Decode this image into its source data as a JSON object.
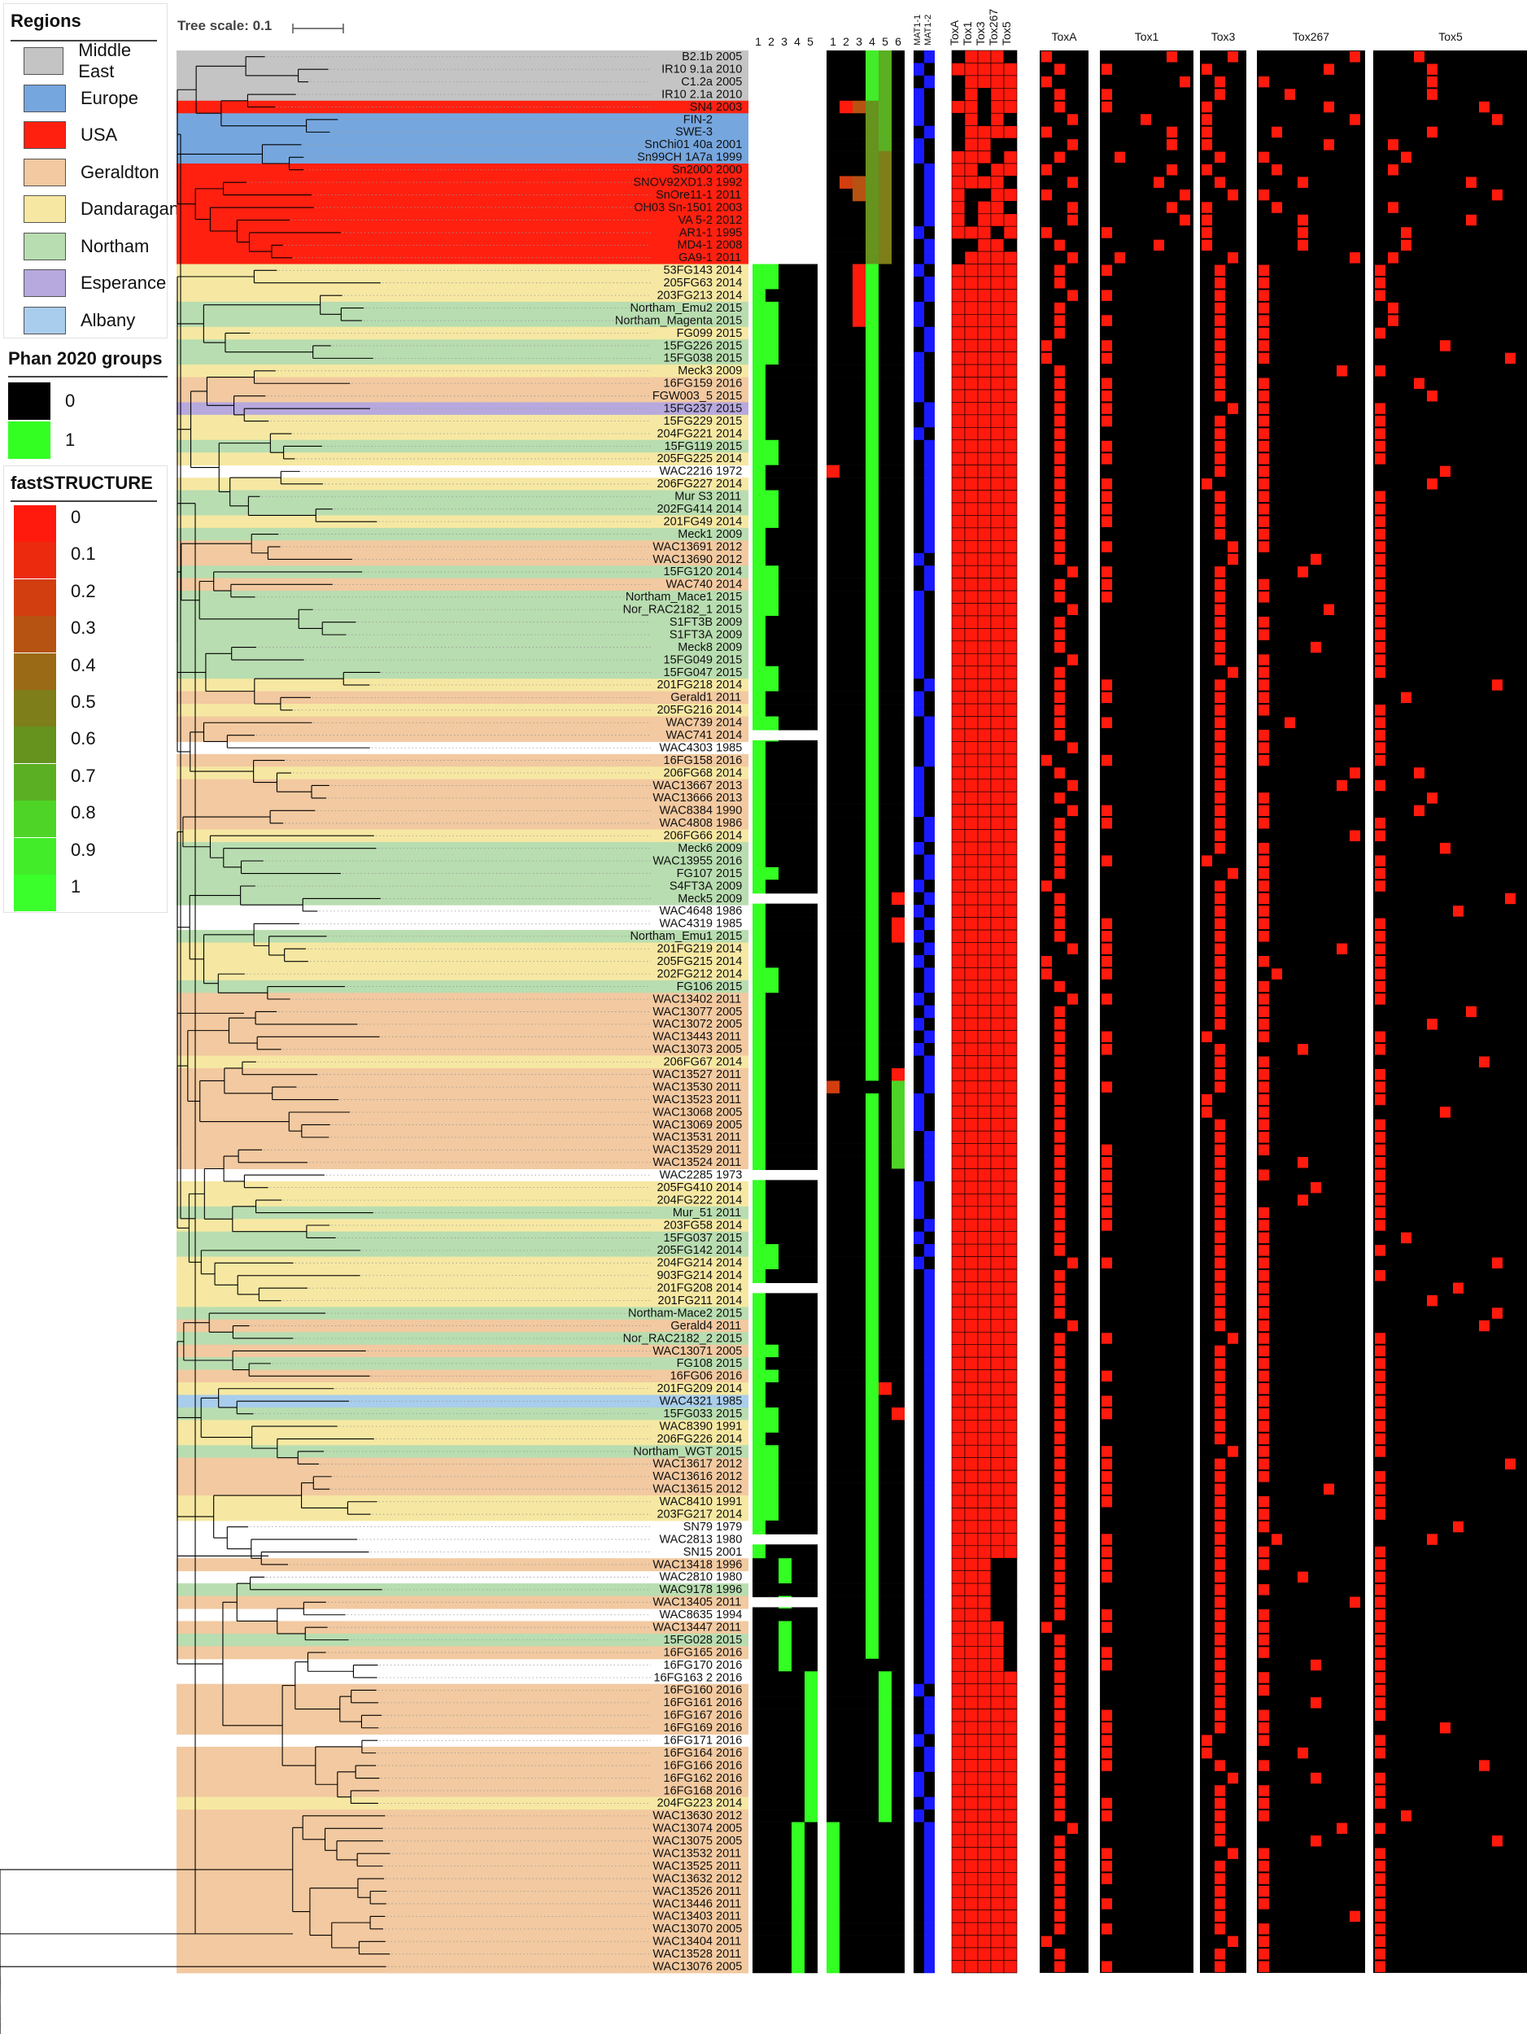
{
  "tree_scale": {
    "label": "Tree scale: 0.1"
  },
  "legends": {
    "regions": {
      "title": "Regions",
      "items": [
        {
          "label": "Middle East",
          "color": "#c4c4c4"
        },
        {
          "label": "Europe",
          "color": "#76a6de"
        },
        {
          "label": "USA",
          "color": "#ff2010"
        },
        {
          "label": "Geraldton",
          "color": "#f2c9a0"
        },
        {
          "label": "Dandaragan",
          "color": "#f6e8a2"
        },
        {
          "label": "Northam",
          "color": "#b8ddb0"
        },
        {
          "label": "Esperance",
          "color": "#b7a9de"
        },
        {
          "label": "Albany",
          "color": "#a9cdec"
        }
      ]
    },
    "phan": {
      "title": "Phan 2020 groups",
      "items": [
        {
          "label": "0",
          "color": "#000000"
        },
        {
          "label": "1",
          "color": "#33ff22"
        }
      ]
    },
    "faststructure": {
      "title": "fastSTRUCTURE",
      "items": [
        {
          "label": "0",
          "color": "#ff1a0d"
        },
        {
          "label": "0.1",
          "color": "#ec2a0e"
        },
        {
          "label": "0.2",
          "color": "#d23e10"
        },
        {
          "label": "0.3",
          "color": "#b65212"
        },
        {
          "label": "0.4",
          "color": "#9a6a16"
        },
        {
          "label": "0.5",
          "color": "#7e7e1a"
        },
        {
          "label": "0.6",
          "color": "#66921e"
        },
        {
          "label": "0.7",
          "color": "#5aaf22"
        },
        {
          "label": "0.8",
          "color": "#4ed426"
        },
        {
          "label": "0.9",
          "color": "#42ec29"
        },
        {
          "label": "1",
          "color": "#3bff2b"
        }
      ]
    }
  },
  "column_headers": {
    "phan_groups": [
      "1",
      "2",
      "3",
      "4",
      "5"
    ],
    "faststructure_k": [
      "1",
      "2",
      "3",
      "4",
      "5",
      "6"
    ],
    "mat": [
      "MAT1-1",
      "MAT1-2"
    ],
    "tox_presence": [
      "ToxA",
      "Tox1",
      "Tox3",
      "Tox267",
      "Tox5"
    ],
    "tox_variants": [
      "ToxA",
      "Tox1",
      "Tox3",
      "Tox267",
      "Tox5"
    ]
  },
  "colors": {
    "present": "#ff1a0d",
    "absent": "#000000",
    "phan_member": "#33ff22",
    "mat1_2": "#1a1aff",
    "branch": "#000000"
  },
  "isolates": [
    {
      "name": "B2.1b",
      "year": "2005",
      "region": "Middle East"
    },
    {
      "name": "IR10 9.1a",
      "year": "2010",
      "region": "Middle East"
    },
    {
      "name": "C1.2a",
      "year": "2005",
      "region": "Middle East"
    },
    {
      "name": "IR10 2.1a",
      "year": "2010",
      "region": "Middle East"
    },
    {
      "name": "SN4",
      "year": "2003",
      "region": "USA"
    },
    {
      "name": "FIN-2",
      "year": "",
      "region": "Europe"
    },
    {
      "name": "SWE-3",
      "year": "",
      "region": "Europe"
    },
    {
      "name": "SnChi01 40a",
      "year": "2001",
      "region": "Europe"
    },
    {
      "name": "Sn99CH 1A7a",
      "year": "1999",
      "region": "Europe"
    },
    {
      "name": "Sn2000",
      "year": "2000",
      "region": "USA"
    },
    {
      "name": "SNOV92XD1.3",
      "year": "1992",
      "region": "USA"
    },
    {
      "name": "SnOre11-1",
      "year": "2011",
      "region": "USA"
    },
    {
      "name": "OH03 Sn-1501",
      "year": "2003",
      "region": "USA"
    },
    {
      "name": "VA 5-2",
      "year": "2012",
      "region": "USA"
    },
    {
      "name": "AR1-1",
      "year": "1995",
      "region": "USA"
    },
    {
      "name": "MD4-1",
      "year": "2008",
      "region": "USA"
    },
    {
      "name": "GA9-1",
      "year": "2011",
      "region": "USA"
    },
    {
      "name": "53FG143",
      "year": "2014",
      "region": "Dandaragan"
    },
    {
      "name": "205FG63",
      "year": "2014",
      "region": "Dandaragan"
    },
    {
      "name": "203FG213",
      "year": "2014",
      "region": "Dandaragan"
    },
    {
      "name": "Northam_Emu2",
      "year": "2015",
      "region": "Northam"
    },
    {
      "name": "Northam_Magenta",
      "year": "2015",
      "region": "Northam"
    },
    {
      "name": "FG099",
      "year": "2015",
      "region": "Dandaragan"
    },
    {
      "name": "15FG226",
      "year": "2015",
      "region": "Northam"
    },
    {
      "name": "15FG038",
      "year": "2015",
      "region": "Northam"
    },
    {
      "name": "Meck3",
      "year": "2009",
      "region": "Dandaragan"
    },
    {
      "name": "16FG159",
      "year": "2016",
      "region": "Geraldton"
    },
    {
      "name": "FGW003_5",
      "year": "2015",
      "region": "Geraldton"
    },
    {
      "name": "15FG237",
      "year": "2015",
      "region": "Esperance"
    },
    {
      "name": "15FG229",
      "year": "2015",
      "region": "Dandaragan"
    },
    {
      "name": "204FG221",
      "year": "2014",
      "region": "Dandaragan"
    },
    {
      "name": "15FG119",
      "year": "2015",
      "region": "Northam"
    },
    {
      "name": "205FG225",
      "year": "2014",
      "region": "Dandaragan"
    },
    {
      "name": "WAC2216",
      "year": "1972",
      "region": ""
    },
    {
      "name": "206FG227",
      "year": "2014",
      "region": "Dandaragan"
    },
    {
      "name": "Mur S3",
      "year": "2011",
      "region": "Northam"
    },
    {
      "name": "202FG414",
      "year": "2014",
      "region": "Northam"
    },
    {
      "name": "201FG49",
      "year": "2014",
      "region": "Dandaragan"
    },
    {
      "name": "Meck1",
      "year": "2009",
      "region": "Northam"
    },
    {
      "name": "WAC13691",
      "year": "2012",
      "region": "Geraldton"
    },
    {
      "name": "WAC13690",
      "year": "2012",
      "region": "Geraldton"
    },
    {
      "name": "15FG120",
      "year": "2014",
      "region": "Northam"
    },
    {
      "name": "WAC740",
      "year": "2014",
      "region": "Geraldton"
    },
    {
      "name": "Northam_Mace1",
      "year": "2015",
      "region": "Northam"
    },
    {
      "name": "Nor_RAC2182_1",
      "year": "2015",
      "region": "Northam"
    },
    {
      "name": "S1FT3B",
      "year": "2009",
      "region": "Northam"
    },
    {
      "name": "S1FT3A",
      "year": "2009",
      "region": "Northam"
    },
    {
      "name": "Meck8",
      "year": "2009",
      "region": "Northam"
    },
    {
      "name": "15FG049",
      "year": "2015",
      "region": "Northam"
    },
    {
      "name": "15FG047",
      "year": "2015",
      "region": "Northam"
    },
    {
      "name": "201FG218",
      "year": "2014",
      "region": "Dandaragan"
    },
    {
      "name": "Gerald1",
      "year": "2011",
      "region": "Geraldton"
    },
    {
      "name": "205FG216",
      "year": "2014",
      "region": "Dandaragan"
    },
    {
      "name": "WAC739",
      "year": "2014",
      "region": "Geraldton"
    },
    {
      "name": "WAC741",
      "year": "2014",
      "region": "Geraldton"
    },
    {
      "name": "WAC4303",
      "year": "1985",
      "region": ""
    },
    {
      "name": "16FG158",
      "year": "2016",
      "region": "Geraldton"
    },
    {
      "name": "206FG68",
      "year": "2014",
      "region": "Dandaragan"
    },
    {
      "name": "WAC13667",
      "year": "2013",
      "region": "Geraldton"
    },
    {
      "name": "WAC13666",
      "year": "2013",
      "region": "Geraldton"
    },
    {
      "name": "WAC8384",
      "year": "1990",
      "region": "Geraldton"
    },
    {
      "name": "WAC4808",
      "year": "1986",
      "region": "Geraldton"
    },
    {
      "name": "206FG66",
      "year": "2014",
      "region": "Dandaragan"
    },
    {
      "name": "Meck6",
      "year": "2009",
      "region": "Northam"
    },
    {
      "name": "WAC13955",
      "year": "2016",
      "region": "Northam"
    },
    {
      "name": "FG107",
      "year": "2015",
      "region": "Northam"
    },
    {
      "name": "S4FT3A",
      "year": "2009",
      "region": "Northam"
    },
    {
      "name": "Meck5",
      "year": "2009",
      "region": "Northam"
    },
    {
      "name": "WAC4648",
      "year": "1986",
      "region": ""
    },
    {
      "name": "WAC4319",
      "year": "1985",
      "region": ""
    },
    {
      "name": "Northam_Emu1",
      "year": "2015",
      "region": "Northam"
    },
    {
      "name": "201FG219",
      "year": "2014",
      "region": "Dandaragan"
    },
    {
      "name": "205FG215",
      "year": "2014",
      "region": "Dandaragan"
    },
    {
      "name": "202FG212",
      "year": "2014",
      "region": "Dandaragan"
    },
    {
      "name": "FG106",
      "year": "2015",
      "region": "Northam"
    },
    {
      "name": "WAC13402",
      "year": "2011",
      "region": "Geraldton"
    },
    {
      "name": "WAC13077",
      "year": "2005",
      "region": "Geraldton"
    },
    {
      "name": "WAC13072",
      "year": "2005",
      "region": "Geraldton"
    },
    {
      "name": "WAC13443",
      "year": "2011",
      "region": "Geraldton"
    },
    {
      "name": "WAC13073",
      "year": "2005",
      "region": "Geraldton"
    },
    {
      "name": "206FG67",
      "year": "2014",
      "region": "Dandaragan"
    },
    {
      "name": "WAC13527",
      "year": "2011",
      "region": "Geraldton"
    },
    {
      "name": "WAC13530",
      "year": "2011",
      "region": "Geraldton"
    },
    {
      "name": "WAC13523",
      "year": "2011",
      "region": "Geraldton"
    },
    {
      "name": "WAC13068",
      "year": "2005",
      "region": "Geraldton"
    },
    {
      "name": "WAC13069",
      "year": "2005",
      "region": "Geraldton"
    },
    {
      "name": "WAC13531",
      "year": "2011",
      "region": "Geraldton"
    },
    {
      "name": "WAC13529",
      "year": "2011",
      "region": "Geraldton"
    },
    {
      "name": "WAC13524",
      "year": "2011",
      "region": "Geraldton"
    },
    {
      "name": "WAC2285",
      "year": "1973",
      "region": ""
    },
    {
      "name": "205FG410",
      "year": "2014",
      "region": "Dandaragan"
    },
    {
      "name": "204FG222",
      "year": "2014",
      "region": "Dandaragan"
    },
    {
      "name": "Mur_51",
      "year": "2011",
      "region": "Northam"
    },
    {
      "name": "203FG58",
      "year": "2014",
      "region": "Dandaragan"
    },
    {
      "name": "15FG037",
      "year": "2015",
      "region": "Northam"
    },
    {
      "name": "205FG142",
      "year": "2014",
      "region": "Northam"
    },
    {
      "name": "204FG214",
      "year": "2014",
      "region": "Dandaragan"
    },
    {
      "name": "903FG214",
      "year": "2014",
      "region": "Dandaragan"
    },
    {
      "name": "201FG208",
      "year": "2014",
      "region": "Dandaragan"
    },
    {
      "name": "201FG211",
      "year": "2014",
      "region": "Dandaragan"
    },
    {
      "name": "Northam-Mace2",
      "year": "2015",
      "region": "Northam"
    },
    {
      "name": "Gerald4",
      "year": "2011",
      "region": "Geraldton"
    },
    {
      "name": "Nor_RAC2182_2",
      "year": "2015",
      "region": "Northam"
    },
    {
      "name": "WAC13071",
      "year": "2005",
      "region": "Geraldton"
    },
    {
      "name": "FG108",
      "year": "2015",
      "region": "Northam"
    },
    {
      "name": "16FG06",
      "year": "2016",
      "region": "Geraldton"
    },
    {
      "name": "201FG209",
      "year": "2014",
      "region": "Dandaragan"
    },
    {
      "name": "WAC4321",
      "year": "1985",
      "region": "Albany"
    },
    {
      "name": "15FG033",
      "year": "2015",
      "region": "Northam"
    },
    {
      "name": "WAC8390",
      "year": "1991",
      "region": "Dandaragan"
    },
    {
      "name": "206FG226",
      "year": "2014",
      "region": "Dandaragan"
    },
    {
      "name": "Northam_WGT",
      "year": "2015",
      "region": "Northam"
    },
    {
      "name": "WAC13617",
      "year": "2012",
      "region": "Geraldton"
    },
    {
      "name": "WAC13616",
      "year": "2012",
      "region": "Geraldton"
    },
    {
      "name": "WAC13615",
      "year": "2012",
      "region": "Geraldton"
    },
    {
      "name": "WAC8410",
      "year": "1991",
      "region": "Dandaragan"
    },
    {
      "name": "203FG217",
      "year": "2014",
      "region": "Dandaragan"
    },
    {
      "name": "SN79",
      "year": "1979",
      "region": ""
    },
    {
      "name": "WAC2813",
      "year": "1980",
      "region": ""
    },
    {
      "name": "SN15",
      "year": "2001",
      "region": ""
    },
    {
      "name": "WAC13418",
      "year": "1996",
      "region": "Geraldton"
    },
    {
      "name": "WAC2810",
      "year": "1980",
      "region": ""
    },
    {
      "name": "WAC9178",
      "year": "1996",
      "region": "Northam"
    },
    {
      "name": "WAC13405",
      "year": "2011",
      "region": "Geraldton"
    },
    {
      "name": "WAC8635",
      "year": "1994",
      "region": ""
    },
    {
      "name": "WAC13447",
      "year": "2011",
      "region": "Geraldton"
    },
    {
      "name": "15FG028",
      "year": "2015",
      "region": "Northam"
    },
    {
      "name": "16FG165",
      "year": "2016",
      "region": "Geraldton"
    },
    {
      "name": "16FG170",
      "year": "2016",
      "region": ""
    },
    {
      "name": "16FG163 2",
      "year": "2016",
      "region": ""
    },
    {
      "name": "16FG160",
      "year": "2016",
      "region": "Geraldton"
    },
    {
      "name": "16FG161",
      "year": "2016",
      "region": "Geraldton"
    },
    {
      "name": "16FG167",
      "year": "2016",
      "region": "Geraldton"
    },
    {
      "name": "16FG169",
      "year": "2016",
      "region": "Geraldton"
    },
    {
      "name": "16FG171",
      "year": "2016",
      "region": ""
    },
    {
      "name": "16FG164",
      "year": "2016",
      "region": "Geraldton"
    },
    {
      "name": "16FG166",
      "year": "2016",
      "region": "Geraldton"
    },
    {
      "name": "16FG162",
      "year": "2016",
      "region": "Geraldton"
    },
    {
      "name": "16FG168",
      "year": "2016",
      "region": "Geraldton"
    },
    {
      "name": "204FG223",
      "year": "2014",
      "region": "Dandaragan"
    },
    {
      "name": "WAC13630",
      "year": "2012",
      "region": "Geraldton"
    },
    {
      "name": "WAC13074",
      "year": "2005",
      "region": "Geraldton"
    },
    {
      "name": "WAC13075",
      "year": "2005",
      "region": "Geraldton"
    },
    {
      "name": "WAC13532",
      "year": "2011",
      "region": "Geraldton"
    },
    {
      "name": "WAC13525",
      "year": "2011",
      "region": "Geraldton"
    },
    {
      "name": "WAC13632",
      "year": "2012",
      "region": "Geraldton"
    },
    {
      "name": "WAC13526",
      "year": "2011",
      "region": "Geraldton"
    },
    {
      "name": "WAC13446",
      "year": "2011",
      "region": "Geraldton"
    },
    {
      "name": "WAC13403",
      "year": "2011",
      "region": "Geraldton"
    },
    {
      "name": "WAC13070",
      "year": "2005",
      "region": "Geraldton"
    },
    {
      "name": "WAC13404",
      "year": "2011",
      "region": "Geraldton"
    },
    {
      "name": "WAC13528",
      "year": "2011",
      "region": "Geraldton"
    },
    {
      "name": "WAC13076",
      "year": "2005",
      "region": "Geraldton"
    }
  ]
}
